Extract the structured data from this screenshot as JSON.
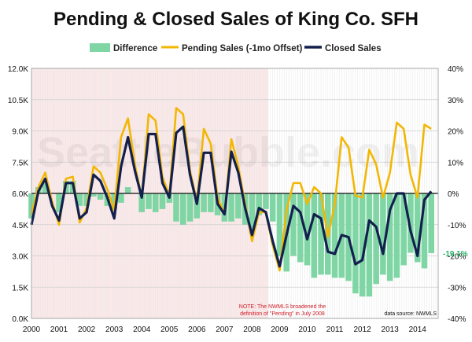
{
  "chart_data": {
    "type": "bar+line",
    "title": "Pending & Closed Sales of King Co. SFH",
    "legend": {
      "position": "top",
      "difference": "Difference",
      "pending": "Pending Sales (-1mo Offset)",
      "closed": "Closed Sales"
    },
    "left_axis": {
      "min": 0,
      "max": 12000,
      "ticks": [
        "0.0K",
        "1.5K",
        "3.0K",
        "4.5K",
        "6.0K",
        "7.5K",
        "9.0K",
        "10.5K",
        "12.0K"
      ]
    },
    "right_axis": {
      "min": -40,
      "max": 40,
      "ticks": [
        "-40%",
        "-30%",
        "-20%",
        "-10%",
        "0%",
        "10%",
        "20%",
        "30%",
        "40%"
      ]
    },
    "x_axis": {
      "start_year": 2000,
      "end_year": 2014,
      "labels": [
        "2000",
        "2001",
        "2002",
        "2003",
        "2004",
        "2005",
        "2006",
        "2007",
        "2008",
        "2009",
        "2010",
        "2011",
        "2012",
        "2013",
        "2014"
      ]
    },
    "grid": true,
    "watermark": "SeattleBubble.com",
    "shaded_region_end_year": 2008.58,
    "note": [
      "NOTE: The NWMLS broadened the",
      "definition  of \"Pending\" in July 2008"
    ],
    "source": "data source: NWMLS",
    "end_label": "-19.1%",
    "colors": {
      "difference": "#7fd6a4",
      "pending": "#f2b705",
      "closed": "#13204e",
      "shade": "#fbe8e8",
      "end_label": "#2bb36b"
    },
    "months": [
      "2000-01",
      "2000-04",
      "2000-07",
      "2000-10",
      "2001-01",
      "2001-04",
      "2001-07",
      "2001-10",
      "2002-01",
      "2002-04",
      "2002-07",
      "2002-10",
      "2003-01",
      "2003-04",
      "2003-07",
      "2003-10",
      "2004-01",
      "2004-04",
      "2004-07",
      "2004-10",
      "2005-01",
      "2005-04",
      "2005-07",
      "2005-10",
      "2006-01",
      "2006-04",
      "2006-07",
      "2006-10",
      "2007-01",
      "2007-04",
      "2007-07",
      "2007-10",
      "2008-01",
      "2008-04",
      "2008-07",
      "2008-10",
      "2009-01",
      "2009-04",
      "2009-07",
      "2009-10",
      "2010-01",
      "2010-04",
      "2010-07",
      "2010-10",
      "2011-01",
      "2011-04",
      "2011-07",
      "2011-10",
      "2012-01",
      "2012-04",
      "2012-07",
      "2012-10",
      "2013-01",
      "2013-04",
      "2013-07",
      "2013-10",
      "2014-01",
      "2014-04",
      "2014-07"
    ],
    "closed_sales": [
      4500,
      6100,
      6700,
      5400,
      4700,
      6500,
      6500,
      4800,
      5100,
      6900,
      6600,
      5800,
      4800,
      7300,
      8700,
      7100,
      5800,
      8850,
      8850,
      6500,
      5800,
      8900,
      9200,
      6900,
      5500,
      7950,
      7950,
      5500,
      5000,
      8000,
      7000,
      5300,
      4000,
      5300,
      5100,
      3700,
      2500,
      4000,
      5400,
      5100,
      3800,
      5000,
      4800,
      3200,
      3100,
      4000,
      3900,
      2600,
      2800,
      4700,
      4400,
      3100,
      5200,
      6000,
      6000,
      4200,
      3000,
      5700,
      6100
    ],
    "pending_sales": [
      5000,
      6300,
      7000,
      5600,
      4500,
      6700,
      6800,
      4600,
      5300,
      7300,
      7000,
      6200,
      5200,
      8700,
      9600,
      7400,
      5800,
      9800,
      9500,
      6800,
      5900,
      10100,
      9800,
      7100,
      5600,
      9100,
      8400,
      5800,
      5000,
      8600,
      7300,
      5500,
      3700,
      5100,
      5100,
      3500,
      2300,
      5200,
      6500,
      6500,
      5500,
      6300,
      6000,
      3900,
      5500,
      8700,
      8200,
      5900,
      5800,
      8100,
      7400,
      5800,
      7000,
      9400,
      9100,
      6900,
      5800,
      9300,
      9100
    ],
    "difference_pct": [
      -8,
      2,
      4,
      0,
      -6,
      4,
      4,
      -4,
      -4,
      -1,
      -2,
      -4,
      -5,
      -3,
      2,
      0,
      -6,
      -5,
      -6,
      -5,
      -3,
      -9,
      -10,
      -9,
      -8,
      -6,
      -6,
      -7,
      -9,
      -9,
      -8,
      -10,
      -13,
      -7,
      -5,
      -9,
      -20,
      -25,
      -20,
      -22,
      -23,
      -27,
      -26,
      -26,
      -27,
      -27,
      -28,
      -32,
      -33,
      -33,
      -29,
      -26,
      -28,
      -27,
      -23,
      -19,
      -22,
      -24,
      -19.1
    ]
  }
}
